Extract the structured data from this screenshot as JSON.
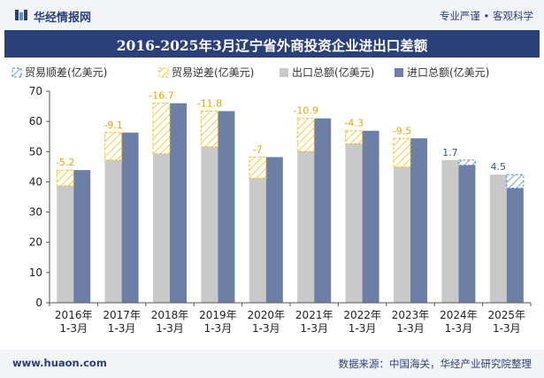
{
  "header": {
    "brand": "华经情报网",
    "slogan": "专业严谨 • 客观科学"
  },
  "footer": {
    "site": "www.huaon.com",
    "source": "数据来源：中国海关，华经产业研究院整理"
  },
  "colors": {
    "export": "#c9c9c9",
    "import": "#6e7fa6",
    "surplus": "#f0c020",
    "deficit": "#5b8fb8",
    "title_bg": "#2b3f78"
  },
  "chart_data": {
    "type": "bar",
    "title": "2016-2025年3月辽宁省外商投资企业进出口差额",
    "categories": [
      "2016年\n1-3月",
      "2017年\n1-3月",
      "2018年\n1-3月",
      "2019年\n1-3月",
      "2020年\n1-3月",
      "2021年\n1-3月",
      "2022年\n1-3月",
      "2023年\n1-3月",
      "2024年\n1-3月",
      "2025年\n1-3月"
    ],
    "ylim": [
      0,
      70
    ],
    "yticks": [
      0,
      10,
      20,
      30,
      40,
      50,
      60,
      70
    ],
    "legend": [
      "贸易顺差(亿美元)",
      "贸易逆差(亿美元)",
      "出口总额(亿美元)",
      "进口总额(亿美元)"
    ],
    "legend_position": "top",
    "series": [
      {
        "name": "出口总额(亿美元)",
        "values": [
          38.7,
          47.2,
          49.3,
          51.6,
          41.2,
          50.1,
          52.6,
          44.9,
          47.2,
          42.4
        ]
      },
      {
        "name": "进口总额(亿美元)",
        "values": [
          43.9,
          56.3,
          66.0,
          63.4,
          48.2,
          61.0,
          56.9,
          54.4,
          45.5,
          37.9
        ]
      }
    ],
    "balance_labels": [
      "-5.2",
      "-9.1",
      "-16.7",
      "-11.8",
      "-7",
      "-10.9",
      "-4.3",
      "-9.5",
      "1.7",
      "4.5"
    ]
  }
}
